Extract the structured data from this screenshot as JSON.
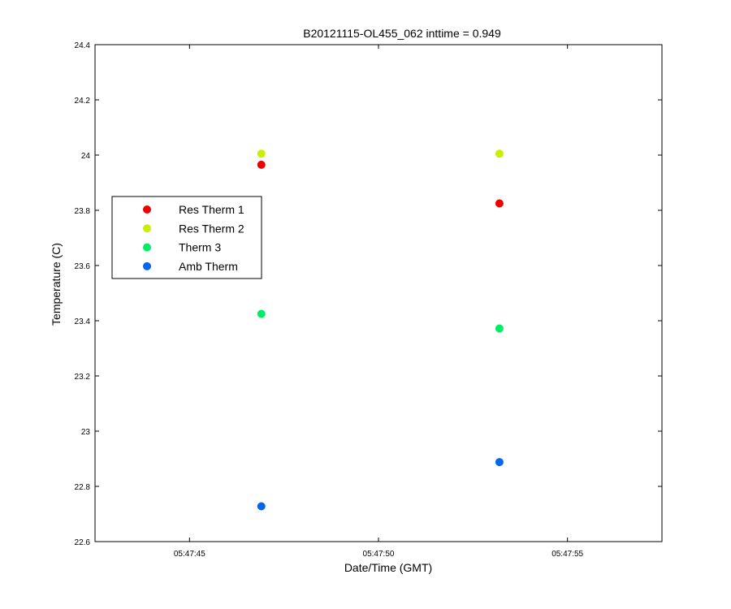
{
  "chart_data": {
    "type": "scatter",
    "title": "B20121115-OL455_062 inttime = 0.949",
    "xlabel": "Date/Time (GMT)",
    "ylabel": "Temperature (C)",
    "xlim": [
      "05:47:42.5",
      "05:47:57.5"
    ],
    "ylim": [
      22.6,
      24.4
    ],
    "x_ticks": [
      "05:47:45",
      "05:47:50",
      "05:47:55"
    ],
    "y_ticks": [
      "22.6",
      "22.8",
      "23",
      "23.2",
      "23.4",
      "23.6",
      "23.8",
      "24",
      "24.2",
      "24.4"
    ],
    "grid": false,
    "legend_position": "center-left",
    "series": [
      {
        "name": "Res Therm 1",
        "color": "#ee0000",
        "x": [
          "05:47:46.9",
          "05:47:53.2"
        ],
        "y": [
          23.965,
          23.825
        ]
      },
      {
        "name": "Res Therm 2",
        "color": "#ccee00",
        "x": [
          "05:47:46.9",
          "05:47:53.2"
        ],
        "y": [
          24.005,
          24.005
        ]
      },
      {
        "name": "Therm 3",
        "color": "#00ee66",
        "x": [
          "05:47:46.9",
          "05:47:53.2"
        ],
        "y": [
          23.425,
          23.372
        ]
      },
      {
        "name": "Amb Therm",
        "color": "#0066ee",
        "x": [
          "05:47:46.9",
          "05:47:53.2"
        ],
        "y": [
          22.728,
          22.888
        ]
      }
    ]
  }
}
